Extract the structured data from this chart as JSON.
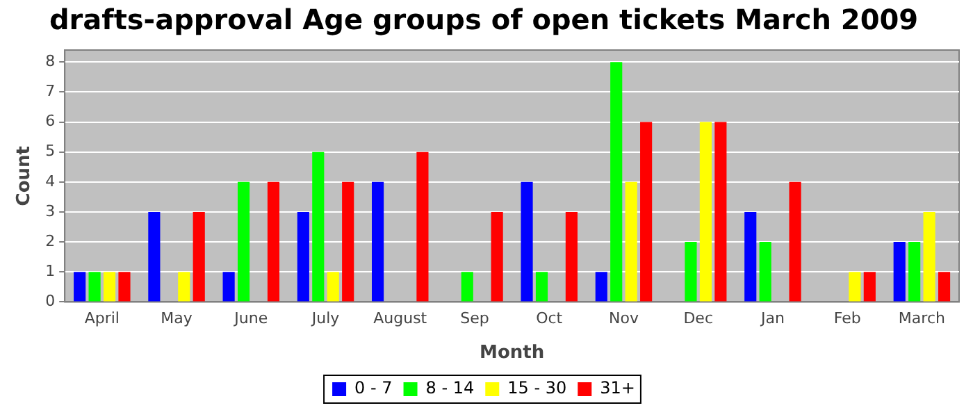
{
  "chart_data": {
    "type": "bar",
    "title": "drafts-approval Age groups of open tickets March 2009",
    "xlabel": "Month",
    "ylabel": "Count",
    "categories": [
      "April",
      "May",
      "June",
      "July",
      "August",
      "Sep",
      "Oct",
      "Nov",
      "Dec",
      "Jan",
      "Feb",
      "March"
    ],
    "series": [
      {
        "name": "0 - 7",
        "color": "#0000ff",
        "values": [
          1,
          3,
          1,
          3,
          4,
          null,
          4,
          1,
          null,
          3,
          null,
          2
        ]
      },
      {
        "name": "8 - 14",
        "color": "#00ff00",
        "values": [
          1,
          null,
          4,
          5,
          null,
          1,
          1,
          8,
          2,
          2,
          null,
          2
        ]
      },
      {
        "name": "15 - 30",
        "color": "#ffff00",
        "values": [
          1,
          1,
          null,
          1,
          null,
          null,
          null,
          4,
          6,
          null,
          1,
          3
        ]
      },
      {
        "name": "31+",
        "color": "#ff0000",
        "values": [
          1,
          3,
          4,
          4,
          5,
          3,
          3,
          6,
          6,
          4,
          1,
          1
        ]
      }
    ],
    "ylim": [
      0,
      8.4
    ],
    "yticks": [
      0,
      1,
      2,
      3,
      4,
      5,
      6,
      7,
      8
    ],
    "grid": "y",
    "legend": "bottom"
  }
}
